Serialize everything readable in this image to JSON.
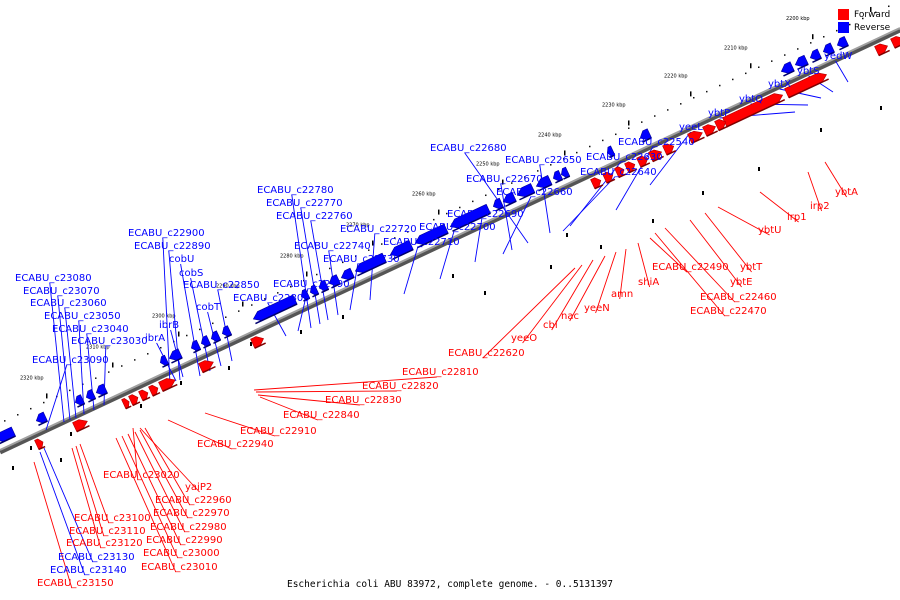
{
  "title": "Escherichia coli ABU 83972, complete genome. - 0..5131397",
  "legend": [
    {
      "label": "Forward",
      "color": "#ff0000"
    },
    {
      "label": "Reverse",
      "color": "#0000ff"
    }
  ],
  "colors": {
    "forward": "#ff0000",
    "reverse": "#0000ff",
    "backbone": "#7f7f7f"
  },
  "axis_ticks": [
    "2190 kbp",
    "2200 kbp",
    "2210 kbp",
    "2220 kbp",
    "2230 kbp",
    "2240 kbp",
    "2250 kbp",
    "2260 kbp",
    "2270 kbp",
    "2280 kbp",
    "2290 kbp",
    "2300 kbp",
    "2310 kbp",
    "2320 kbp"
  ],
  "reverse_labels": [
    "yedW",
    "ybtS",
    "ybtX",
    "ybtQ",
    "ybtP",
    "yeeL",
    "ECABU_c22540",
    "ECABU_c22630",
    "ECABU_c22640",
    "ECABU_c22650",
    "ECABU_c22680",
    "ECABU_c22670",
    "ECABU_c22660",
    "ECABU_c22690",
    "ECABU_c22700",
    "ECABU_c22710",
    "ECABU_c22720",
    "ECABU_c22730",
    "ECABU_c22740",
    "ECABU_c22760",
    "ECABU_c22770",
    "ECABU_c22780",
    "ECABU_c22790",
    "ECABU_c22800",
    "ECABU_c22850",
    "cobT",
    "cobS",
    "cobU",
    "ECABU_c22890",
    "ECABU_c22900",
    "ibrB",
    "ibrA",
    "ECABU_c23030",
    "ECABU_c23040",
    "ECABU_c23050",
    "ECABU_c23060",
    "ECABU_c23070",
    "ECABU_c23080",
    "ECABU_c23090",
    "ECABU_c23130",
    "ECABU_c23140"
  ],
  "forward_labels": [
    "ybtA",
    "irp2",
    "irp1",
    "ybtU",
    "ybtT",
    "ybtE",
    "ECABU_c22460",
    "ECABU_c22470",
    "ECABU_c22490",
    "shiA",
    "amn",
    "yeeN",
    "nac",
    "cbl",
    "yeeO",
    "ECABU_c22620",
    "ECABU_c22810",
    "ECABU_c22820",
    "ECABU_c22830",
    "ECABU_c22840",
    "ECABU_c22910",
    "ECABU_c22940",
    "ECABU_c23020",
    "yaiP2",
    "ECABU_c22960",
    "ECABU_c22970",
    "ECABU_c22980",
    "ECABU_c22990",
    "ECABU_c23000",
    "ECABU_c23010",
    "ECABU_c23100",
    "ECABU_c23110",
    "ECABU_c23120",
    "ECABU_c23150"
  ]
}
